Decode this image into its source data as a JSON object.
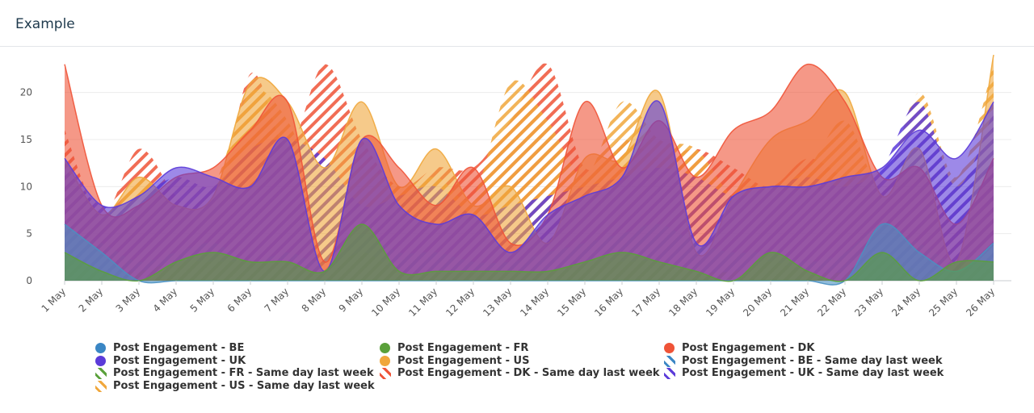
{
  "panel": {
    "title": "Example"
  },
  "chart_data": {
    "type": "area",
    "title": "Example",
    "categories": [
      "1 May",
      "2 May",
      "3 May",
      "4 May",
      "5 May",
      "6 May",
      "7 May",
      "8 May",
      "9 May",
      "10 May",
      "11 May",
      "12 May",
      "13 May",
      "14 May",
      "15 May",
      "16 May",
      "17 May",
      "18 May",
      "19 May",
      "20 May",
      "21 May",
      "22 May",
      "23 May",
      "24 May",
      "25 May",
      "26 May"
    ],
    "ylim": [
      0,
      24
    ],
    "yticks": [
      0,
      5,
      10,
      15,
      20
    ],
    "grid": true,
    "legend_position": "bottom",
    "series": [
      {
        "name": "Post Engagement - BE",
        "color": "#4a90c2",
        "pattern": "solid",
        "values": [
          6,
          3,
          0,
          0,
          0,
          0,
          0,
          0,
          0,
          0,
          0,
          0,
          0,
          0,
          0,
          0,
          0,
          0,
          0,
          0,
          0,
          0,
          6,
          3,
          1,
          4
        ]
      },
      {
        "name": "Post Engagement - FR",
        "color": "#5aa03a",
        "pattern": "solid",
        "values": [
          3,
          1,
          0,
          2,
          3,
          2,
          2,
          1,
          6,
          1,
          1,
          1,
          1,
          1,
          2,
          3,
          2,
          1,
          0,
          3,
          1,
          0,
          3,
          0,
          2,
          2
        ]
      },
      {
        "name": "Post Engagement - DK",
        "color": "#ef5337",
        "pattern": "solid",
        "values": [
          23,
          8,
          8,
          11,
          12,
          16,
          19,
          2,
          15,
          12,
          8,
          12,
          4,
          7,
          19,
          12,
          17,
          11,
          16,
          18,
          23,
          19,
          11,
          12,
          6,
          13
        ]
      },
      {
        "name": "Post Engagement - UK",
        "color": "#5b3bd9",
        "pattern": "solid",
        "values": [
          13,
          8,
          9,
          12,
          11,
          10,
          15,
          1,
          15,
          8,
          6,
          7,
          3,
          7,
          9,
          11,
          19,
          4,
          9,
          10,
          10,
          11,
          12,
          16,
          13,
          19
        ]
      },
      {
        "name": "Post Engagement - US",
        "color": "#f0a73c",
        "pattern": "solid",
        "values": [
          13,
          7,
          11,
          8,
          9,
          21,
          19,
          12,
          19,
          10,
          14,
          8,
          10,
          4,
          13,
          13,
          20,
          3,
          9,
          15,
          17,
          20,
          9,
          14,
          2,
          24
        ]
      },
      {
        "name": "Post Engagement - BE - Same day last week",
        "color": "#4a90c2",
        "pattern": "striped",
        "values": [
          5,
          4,
          2,
          3,
          4,
          2,
          3,
          2,
          5,
          3,
          3,
          2,
          2,
          3,
          4,
          5,
          6,
          4,
          3,
          3,
          2,
          3,
          6,
          4,
          2,
          4
        ]
      },
      {
        "name": "Post Engagement - FR - Same day last week",
        "color": "#5aa03a",
        "pattern": "striped",
        "values": [
          2,
          1,
          1,
          2,
          2,
          2,
          2,
          1,
          3,
          1,
          1,
          1,
          1,
          1,
          2,
          2,
          2,
          1,
          1,
          2,
          1,
          1,
          3,
          1,
          1,
          2
        ]
      },
      {
        "name": "Post Engagement - DK - Same day last week",
        "color": "#ef5337",
        "pattern": "striped",
        "values": [
          16,
          7,
          14,
          9,
          6,
          22,
          14,
          23,
          15,
          10,
          12,
          12,
          17,
          23,
          12,
          15,
          13,
          14,
          12,
          10,
          13,
          11,
          10,
          14,
          8,
          13
        ]
      },
      {
        "name": "Post Engagement - UK - Same day last week",
        "color": "#5b3bd9",
        "pattern": "striped",
        "values": [
          12,
          8,
          9,
          11,
          10,
          14,
          15,
          13,
          8,
          9,
          10,
          7,
          8,
          9,
          10,
          11,
          12,
          11,
          9,
          10,
          11,
          10,
          12,
          19,
          10,
          18
        ]
      },
      {
        "name": "Post Engagement - US - Same day last week",
        "color": "#f0a73c",
        "pattern": "striped",
        "values": [
          13,
          6,
          11,
          8,
          10,
          20,
          17,
          8,
          12,
          10,
          11,
          9,
          21,
          17,
          11,
          19,
          15,
          14,
          9,
          10,
          12,
          17,
          10,
          20,
          11,
          23
        ]
      }
    ]
  },
  "legend": {
    "items": [
      {
        "label": "Post Engagement - BE",
        "color": "#3a86c4",
        "style": "dot"
      },
      {
        "label": "Post Engagement - FR",
        "color": "#5aa03a",
        "style": "dot"
      },
      {
        "label": "Post Engagement - DK",
        "color": "#ef5337",
        "style": "dot"
      },
      {
        "label": "Post Engagement - UK",
        "color": "#5b3bd9",
        "style": "dot"
      },
      {
        "label": "Post Engagement - US",
        "color": "#f0a73c",
        "style": "dot"
      },
      {
        "label": "Post Engagement - BE - Same day last week",
        "color": "#3a86c4",
        "style": "stripe"
      },
      {
        "label": "Post Engagement - FR - Same day last week",
        "color": "#5aa03a",
        "style": "stripe"
      },
      {
        "label": "Post Engagement - DK - Same day last week",
        "color": "#ef5337",
        "style": "stripe"
      },
      {
        "label": "Post Engagement - UK - Same day last week",
        "color": "#5b3bd9",
        "style": "stripe"
      },
      {
        "label": "Post Engagement - US - Same day last week",
        "color": "#f0a73c",
        "style": "stripe"
      }
    ]
  }
}
